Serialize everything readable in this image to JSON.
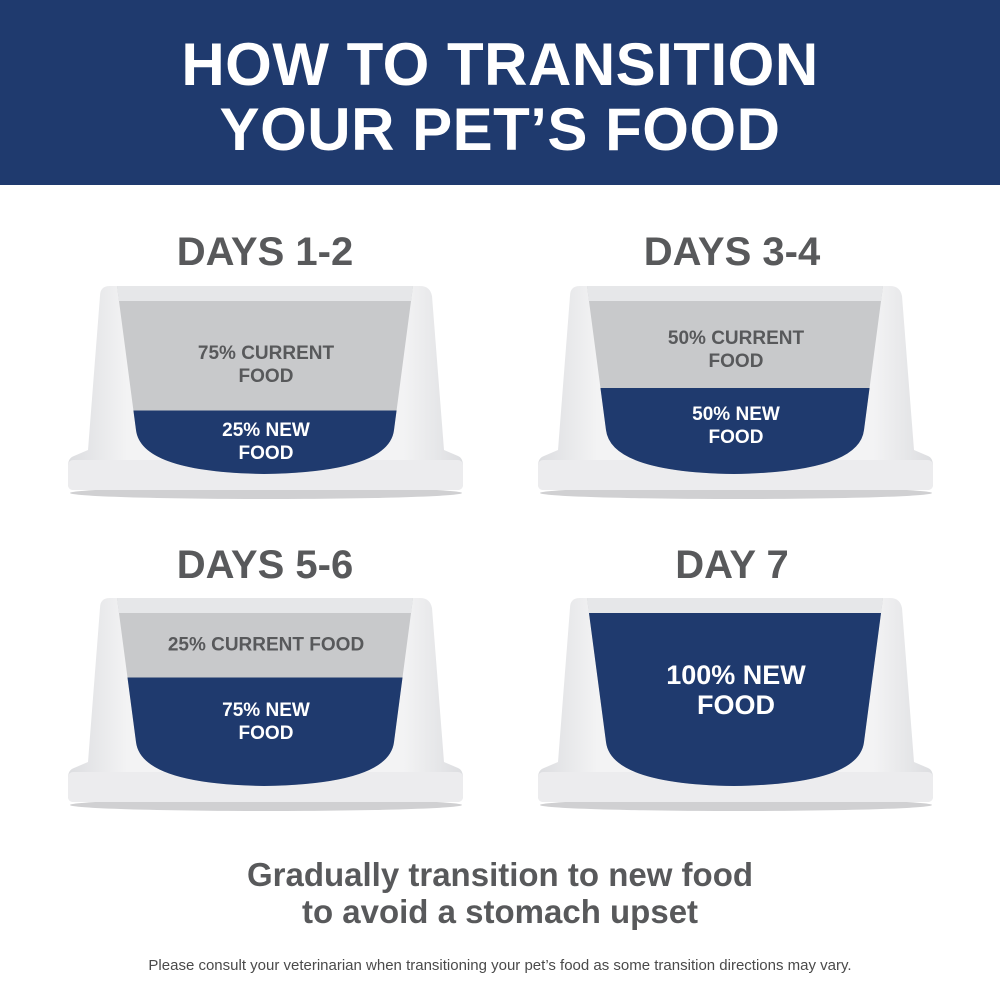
{
  "header": {
    "title_line1": "HOW TO TRANSITION",
    "title_line2": "YOUR PET’S FOOD"
  },
  "colors": {
    "navy": "#1f3a6e",
    "current_food_gray": "#c8c9cb",
    "text_gray": "#58595b",
    "bowl_white": "#eeeff0"
  },
  "stages": [
    {
      "heading": "DAYS 1-2",
      "current_label": "75% CURRENT FOOD",
      "current_line1": "75% CURRENT",
      "current_line2": "FOOD",
      "new_line1": "25% NEW",
      "new_line2": "FOOD",
      "new_percent": 25
    },
    {
      "heading": "DAYS 3-4",
      "current_label": "50% CURRENT FOOD",
      "current_line1": "50% CURRENT",
      "current_line2": "FOOD",
      "new_line1": "50% NEW",
      "new_line2": "FOOD",
      "new_percent": 50
    },
    {
      "heading": "DAYS 5-6",
      "current_label": "25% CURRENT FOOD",
      "new_line1": "75% NEW",
      "new_line2": "FOOD",
      "new_percent": 75
    },
    {
      "heading": "DAY 7",
      "new_line1": "100% NEW",
      "new_line2": "FOOD",
      "new_percent": 100
    }
  ],
  "tagline": {
    "line1": "Gradually transition to new food",
    "line2": "to avoid a stomach upset"
  },
  "footnote": "Please consult your veterinarian when transitioning your pet’s food as some transition directions may vary."
}
